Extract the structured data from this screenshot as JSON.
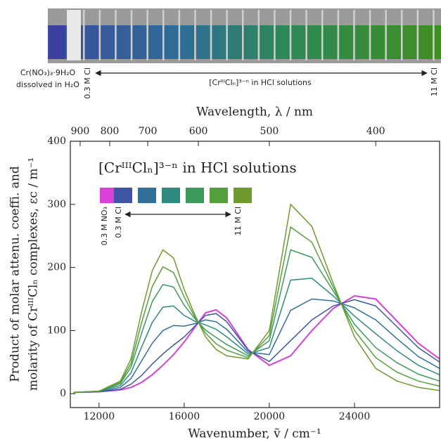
{
  "photo": {
    "left_label": [
      "Cr(NO₃)₃·9H₂O",
      "dissolved in H₂O"
    ],
    "start_label": "0.3 M Cl",
    "center_label": "[CrᴵᴵᴵClₙ]³⁻ⁿ in HCl solutions",
    "end_label": "11 M Cl"
  },
  "chart_data": {
    "type": "line",
    "title": "[CrᴵᴵᴵClₙ]³⁻ⁿ in HCl solutions",
    "x_label": "Wavenumber, ṽ / cm⁻¹",
    "x2_label": "Wavelength, λ / nm",
    "y_label": [
      "Product of molar attenu. coeffi. and",
      "molarity of CrᴵᴵᴵClₙ complexes, εc / m⁻¹"
    ],
    "xlim": [
      10650,
      28000
    ],
    "ylim": [
      -22,
      400
    ],
    "xticks": [
      12000,
      16000,
      20000,
      24000
    ],
    "x2ticks": [
      900,
      800,
      700,
      600,
      500,
      400
    ],
    "yticks": [
      0,
      100,
      200,
      300,
      400
    ],
    "x": [
      10800,
      12000,
      13000,
      13500,
      14000,
      14500,
      15000,
      15500,
      16000,
      16500,
      17000,
      17500,
      18000,
      19000,
      20000,
      21000,
      22000,
      23000,
      24000,
      25000,
      26000,
      27000,
      28000
    ],
    "series": [
      {
        "name": "0.3 M NO₃",
        "color": "#d93fd9",
        "values": [
          2,
          3,
          6,
          10,
          18,
          30,
          45,
          62,
          82,
          105,
          128,
          133,
          120,
          70,
          45,
          60,
          100,
          135,
          155,
          150,
          115,
          80,
          55
        ]
      },
      {
        "name": "0.3 M Cl",
        "color": "#3d55a3",
        "values": [
          2,
          3,
          7,
          15,
          29,
          47,
          63,
          77,
          90,
          107,
          124,
          127,
          114,
          69,
          51,
          84,
          117,
          139,
          149,
          139,
          106,
          73,
          50
        ]
      },
      {
        "color": "#30709a",
        "values": [
          2,
          3,
          10,
          24,
          52,
          80,
          100,
          108,
          107,
          111,
          117,
          114,
          102,
          66,
          62,
          132,
          150,
          147,
          136,
          117,
          87,
          59,
          40
        ]
      },
      {
        "color": "#2f8a80",
        "values": [
          2,
          4,
          13,
          33,
          74,
          113,
          137,
          139,
          124,
          115,
          109,
          102,
          90,
          63,
          73,
          180,
          183,
          155,
          123,
          95,
          68,
          45,
          30
        ]
      },
      {
        "color": "#3c9a5c",
        "values": [
          2,
          4,
          16,
          42,
          96,
          146,
          173,
          169,
          140,
          119,
          101,
          89,
          78,
          60,
          84,
          228,
          216,
          163,
          110,
          73,
          49,
          31,
          20
        ]
      },
      {
        "color": "#55a03c",
        "values": [
          2,
          4,
          18,
          48,
          113,
          170,
          201,
          192,
          153,
          122,
          96,
          79,
          69,
          57,
          92,
          264,
          240,
          169,
          100,
          57,
          34,
          20,
          12
        ]
      },
      {
        "name": "11 M Cl",
        "color": "#6e9a2e",
        "values": [
          2,
          4,
          20,
          55,
          130,
          195,
          228,
          215,
          165,
          125,
          90,
          70,
          60,
          55,
          100,
          300,
          265,
          175,
          90,
          40,
          20,
          10,
          5
        ]
      }
    ]
  }
}
